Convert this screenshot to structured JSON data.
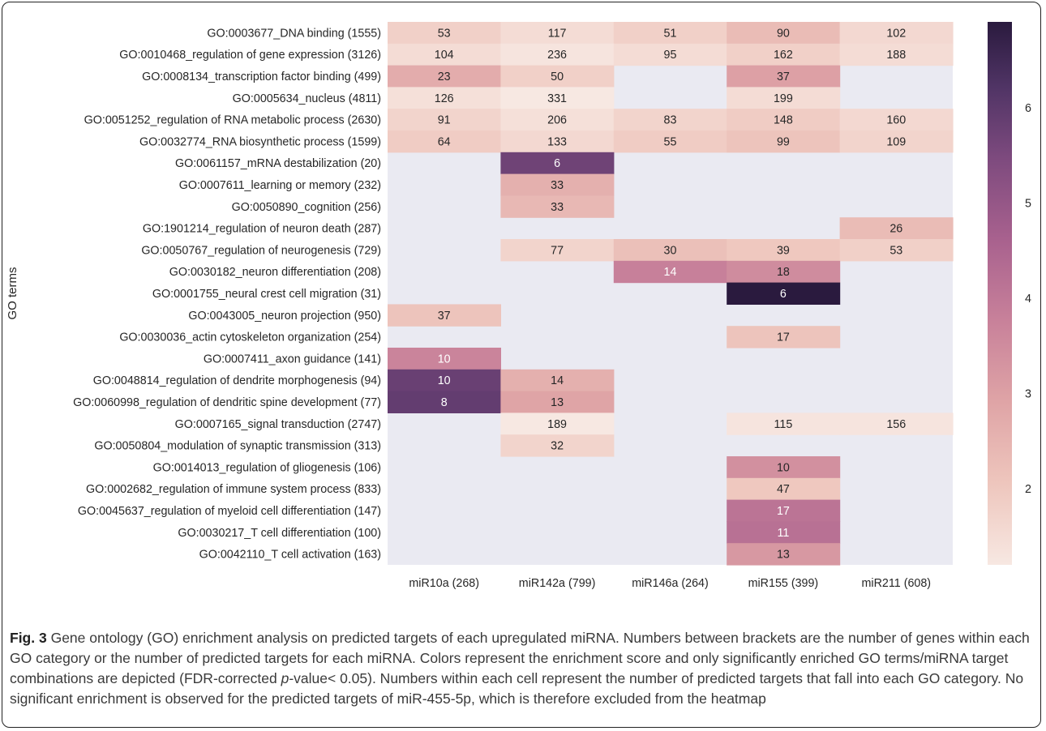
{
  "chart_data": {
    "type": "heatmap",
    "ylabel": "GO terms",
    "xlabel": "",
    "columns": [
      "miR10a (268)",
      "miR142a (799)",
      "miR146a (264)",
      "miR155 (399)",
      "miR211 (608)"
    ],
    "rows": [
      "GO:0003677_DNA binding (1555)",
      "GO:0010468_regulation of gene expression (3126)",
      "GO:0008134_transcription factor binding (499)",
      "GO:0005634_nucleus (4811)",
      "GO:0051252_regulation of RNA metabolic process (2630)",
      "GO:0032774_RNA biosynthetic process (1599)",
      "GO:0061157_mRNA destabilization (20)",
      "GO:0007611_learning or memory (232)",
      "GO:0050890_cognition (256)",
      "GO:1901214_regulation of neuron death (287)",
      "GO:0050767_regulation of neurogenesis (729)",
      "GO:0030182_neuron differentiation (208)",
      "GO:0001755_neural crest cell migration (31)",
      "GO:0043005_neuron projection (950)",
      "GO:0030036_actin cytoskeleton organization (254)",
      "GO:0007411_axon guidance (141)",
      "GO:0048814_regulation of dendrite morphogenesis (94)",
      "GO:0060998_regulation of dendritic spine development (77)",
      "GO:0007165_signal transduction (2747)",
      "GO:0050804_modulation of synaptic transmission (313)",
      "GO:0014013_regulation of gliogenesis (106)",
      "GO:0002682_regulation of immune system process (833)",
      "GO:0045637_regulation of myeloid cell differentiation (147)",
      "GO:0030217_T cell differentiation (100)",
      "GO:0042110_T cell activation (163)"
    ],
    "counts": [
      [
        53,
        117,
        51,
        90,
        102
      ],
      [
        104,
        236,
        95,
        162,
        188
      ],
      [
        23,
        50,
        null,
        37,
        null
      ],
      [
        126,
        331,
        null,
        199,
        null
      ],
      [
        91,
        206,
        83,
        148,
        160
      ],
      [
        64,
        133,
        55,
        99,
        109
      ],
      [
        null,
        6,
        null,
        null,
        null
      ],
      [
        null,
        33,
        null,
        null,
        null
      ],
      [
        null,
        33,
        null,
        null,
        null
      ],
      [
        null,
        null,
        null,
        null,
        26
      ],
      [
        null,
        77,
        30,
        39,
        53
      ],
      [
        null,
        null,
        14,
        18,
        null
      ],
      [
        null,
        null,
        null,
        6,
        null
      ],
      [
        37,
        null,
        null,
        null,
        null
      ],
      [
        null,
        null,
        null,
        17,
        null
      ],
      [
        10,
        null,
        null,
        null,
        null
      ],
      [
        10,
        14,
        null,
        null,
        null
      ],
      [
        8,
        13,
        null,
        null,
        null
      ],
      [
        null,
        189,
        null,
        115,
        156
      ],
      [
        null,
        32,
        null,
        null,
        null
      ],
      [
        null,
        null,
        null,
        10,
        null
      ],
      [
        null,
        null,
        null,
        47,
        null
      ],
      [
        null,
        null,
        null,
        17,
        null
      ],
      [
        null,
        null,
        null,
        11,
        null
      ],
      [
        null,
        null,
        null,
        13,
        null
      ]
    ],
    "scores": [
      [
        1.8,
        1.5,
        1.8,
        2.3,
        1.6
      ],
      [
        1.5,
        1.3,
        1.5,
        1.8,
        1.5
      ],
      [
        2.7,
        1.8,
        null,
        3.0,
        null
      ],
      [
        1.4,
        1.2,
        null,
        1.5,
        null
      ],
      [
        1.7,
        1.4,
        1.7,
        1.9,
        1.6
      ],
      [
        1.9,
        1.6,
        1.9,
        2.1,
        1.7
      ],
      [
        null,
        5.7,
        null,
        null,
        null
      ],
      [
        null,
        2.6,
        null,
        null,
        null
      ],
      [
        null,
        2.4,
        null,
        null,
        null
      ],
      [
        null,
        null,
        null,
        null,
        2.3
      ],
      [
        null,
        1.7,
        2.2,
        2.0,
        1.8
      ],
      [
        null,
        null,
        3.8,
        3.5,
        null
      ],
      [
        null,
        null,
        null,
        6.9,
        null
      ],
      [
        2.1,
        null,
        null,
        null,
        null
      ],
      [
        null,
        null,
        null,
        2.1,
        null
      ],
      [
        3.7,
        null,
        null,
        null,
        null
      ],
      [
        5.8,
        2.6,
        null,
        null,
        null
      ],
      [
        5.9,
        2.9,
        null,
        null,
        null
      ],
      [
        null,
        1.2,
        null,
        1.3,
        1.3
      ],
      [
        null,
        1.7,
        null,
        null,
        null
      ],
      [
        null,
        null,
        null,
        3.4,
        null
      ],
      [
        null,
        null,
        null,
        2.0,
        null
      ],
      [
        null,
        null,
        null,
        4.1,
        null
      ],
      [
        null,
        null,
        null,
        4.2,
        null
      ],
      [
        null,
        null,
        null,
        3.2,
        null
      ]
    ],
    "colorbar": {
      "range": [
        1.2,
        6.9
      ],
      "ticks": [
        2,
        3,
        4,
        5,
        6
      ]
    },
    "colors": {
      "background": "#eaeaf2",
      "low": "#f7e8e2",
      "high": "#2a1a3e"
    }
  },
  "caption": {
    "label": "Fig. 3",
    "text_1": "Gene ontology (GO) enrichment analysis on predicted targets of each upregulated miRNA. Numbers between brackets are the number of genes within each GO category or the number of predicted targets for each miRNA. Colors represent the enrichment score and only significantly enriched GO terms/miRNA target combinations are depicted (FDR-corrected ",
    "italic": "p",
    "text_2": "-value< 0.05). Numbers within each cell represent the number of predicted targets that fall into each GO category. No significant enrichment is observed for the predicted targets of miR-455-5p, which is therefore excluded from the heatmap"
  }
}
